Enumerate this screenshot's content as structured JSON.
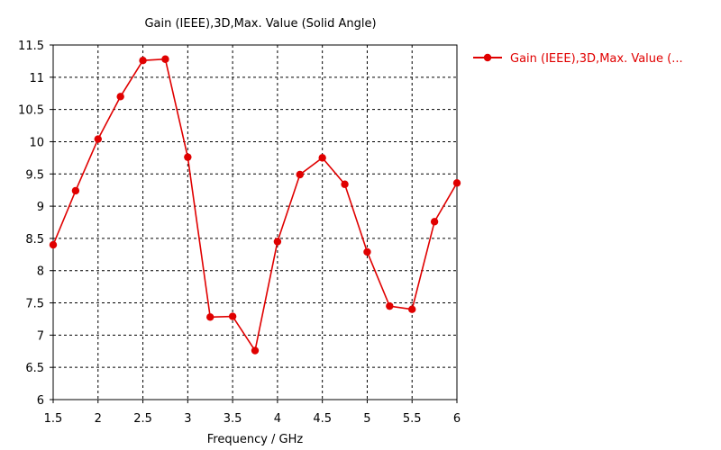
{
  "chart_data": {
    "type": "line",
    "title": "Gain (IEEE),3D,Max. Value (Solid Angle)",
    "xlabel": "Frequency / GHz",
    "ylabel": "",
    "xlim": [
      1.5,
      6
    ],
    "ylim": [
      6,
      11.5
    ],
    "x_ticks": [
      "1.5",
      "2",
      "2.5",
      "3",
      "3.5",
      "4",
      "4.5",
      "5",
      "5.5",
      "6"
    ],
    "y_ticks": [
      "6",
      "6.5",
      "7",
      "7.5",
      "8",
      "8.5",
      "9",
      "9.5",
      "10",
      "10.5",
      "11",
      "11.5"
    ],
    "grid": true,
    "legend_position": "right",
    "series": [
      {
        "name": "Gain (IEEE),3D,Max. Value (...",
        "color": "#e00000",
        "x": [
          1.5,
          1.75,
          2.0,
          2.25,
          2.5,
          2.75,
          3.0,
          3.25,
          3.5,
          3.75,
          4.0,
          4.25,
          4.5,
          4.75,
          5.0,
          5.25,
          5.5,
          5.75,
          6.0
        ],
        "y": [
          8.4,
          9.24,
          10.04,
          10.7,
          11.26,
          11.28,
          9.76,
          7.28,
          7.29,
          6.76,
          8.45,
          9.49,
          9.75,
          9.34,
          8.29,
          7.45,
          7.4,
          8.76,
          9.36
        ]
      }
    ]
  }
}
